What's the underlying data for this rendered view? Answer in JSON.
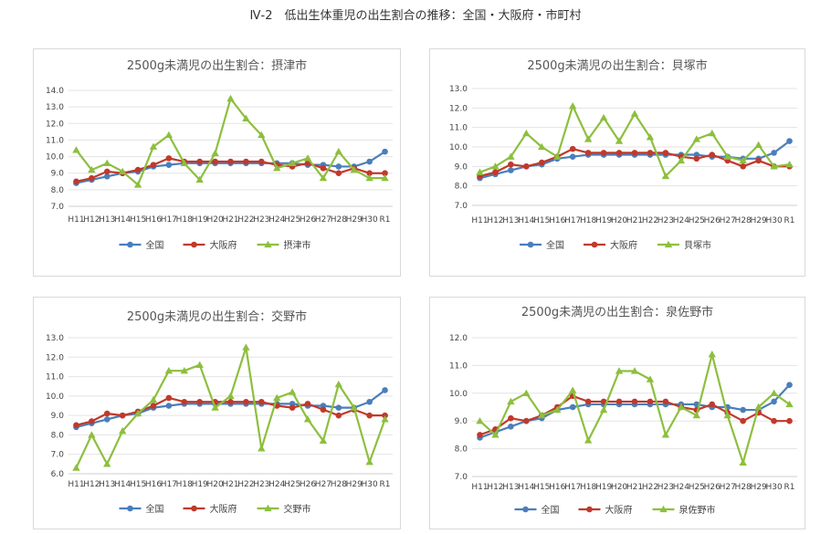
{
  "page_title": "Ⅳ-2　低出生体重児の出生割合の推移：全国・大阪府・市町村",
  "colors": {
    "national": "#4a7ebb",
    "osaka": "#c0392b",
    "city": "#8dbf3e"
  },
  "chart_data": [
    {
      "type": "line",
      "title": "2500g未満児の出生割合：摂津市",
      "categories": [
        "H11",
        "H12",
        "H13",
        "H14",
        "H15",
        "H16",
        "H17",
        "H18",
        "H19",
        "H20",
        "H21",
        "H22",
        "H23",
        "H24",
        "H25",
        "H26",
        "H27",
        "H28",
        "H29",
        "H30",
        "R1"
      ],
      "yticks": [
        "7.0",
        "8.0",
        "9.0",
        "10.0",
        "11.0",
        "12.0",
        "13.0",
        "14.0"
      ],
      "ylim": [
        7,
        14
      ],
      "series": [
        {
          "name": "全国",
          "values": [
            8.4,
            8.6,
            8.8,
            9.0,
            9.1,
            9.4,
            9.5,
            9.6,
            9.6,
            9.6,
            9.6,
            9.6,
            9.6,
            9.6,
            9.6,
            9.5,
            9.5,
            9.4,
            9.4,
            9.7,
            10.3
          ]
        },
        {
          "name": "大阪府",
          "values": [
            8.5,
            8.7,
            9.1,
            9.0,
            9.2,
            9.5,
            9.9,
            9.7,
            9.7,
            9.7,
            9.7,
            9.7,
            9.7,
            9.5,
            9.4,
            9.6,
            9.3,
            9.0,
            9.3,
            9.0,
            9.0
          ]
        },
        {
          "name": "摂津市",
          "values": [
            10.4,
            9.2,
            9.6,
            9.1,
            8.3,
            10.6,
            11.3,
            9.6,
            8.6,
            10.2,
            13.5,
            12.3,
            11.3,
            9.3,
            9.6,
            9.9,
            8.7,
            10.3,
            9.2,
            8.7,
            8.7
          ]
        }
      ]
    },
    {
      "type": "line",
      "title": "2500g未満児の出生割合：貝塚市",
      "categories": [
        "H11",
        "H12",
        "H13",
        "H14",
        "H15",
        "H16",
        "H17",
        "H18",
        "H19",
        "H20",
        "H21",
        "H22",
        "H23",
        "H24",
        "H25",
        "H26",
        "H27",
        "H28",
        "H29",
        "H30",
        "R1"
      ],
      "yticks": [
        "7.0",
        "8.0",
        "9.0",
        "10.0",
        "11.0",
        "12.0",
        "13.0"
      ],
      "ylim": [
        7,
        13
      ],
      "series": [
        {
          "name": "全国",
          "values": [
            8.4,
            8.6,
            8.8,
            9.0,
            9.1,
            9.4,
            9.5,
            9.6,
            9.6,
            9.6,
            9.6,
            9.6,
            9.6,
            9.6,
            9.6,
            9.5,
            9.5,
            9.4,
            9.4,
            9.7,
            10.3
          ]
        },
        {
          "name": "大阪府",
          "values": [
            8.5,
            8.7,
            9.1,
            9.0,
            9.2,
            9.5,
            9.9,
            9.7,
            9.7,
            9.7,
            9.7,
            9.7,
            9.7,
            9.5,
            9.4,
            9.6,
            9.3,
            9.0,
            9.3,
            9.0,
            9.0
          ]
        },
        {
          "name": "貝塚市",
          "values": [
            8.7,
            9.0,
            9.5,
            10.7,
            10.0,
            9.5,
            12.1,
            10.4,
            11.5,
            10.3,
            11.7,
            10.5,
            8.5,
            9.3,
            10.4,
            10.7,
            9.5,
            9.3,
            10.1,
            9.0,
            9.1
          ]
        }
      ]
    },
    {
      "type": "line",
      "title": "2500g未満児の出生割合：交野市",
      "categories": [
        "H11",
        "H12",
        "H13",
        "H14",
        "H15",
        "H16",
        "H17",
        "H18",
        "H19",
        "H20",
        "H21",
        "H22",
        "H23",
        "H24",
        "H25",
        "H26",
        "H27",
        "H28",
        "H29",
        "H30",
        "R1"
      ],
      "yticks": [
        "6.0",
        "7.0",
        "8.0",
        "9.0",
        "10.0",
        "11.0",
        "12.0",
        "13.0"
      ],
      "ylim": [
        6,
        13
      ],
      "series": [
        {
          "name": "全国",
          "values": [
            8.4,
            8.6,
            8.8,
            9.0,
            9.1,
            9.4,
            9.5,
            9.6,
            9.6,
            9.6,
            9.6,
            9.6,
            9.6,
            9.6,
            9.6,
            9.5,
            9.5,
            9.4,
            9.4,
            9.7,
            10.3
          ]
        },
        {
          "name": "大阪府",
          "values": [
            8.5,
            8.7,
            9.1,
            9.0,
            9.2,
            9.5,
            9.9,
            9.7,
            9.7,
            9.7,
            9.7,
            9.7,
            9.7,
            9.5,
            9.4,
            9.6,
            9.3,
            9.0,
            9.3,
            9.0,
            9.0
          ]
        },
        {
          "name": "交野市",
          "values": [
            6.3,
            8.0,
            6.5,
            8.2,
            9.1,
            9.8,
            11.3,
            11.3,
            11.6,
            9.4,
            10.0,
            12.5,
            7.3,
            9.9,
            10.2,
            8.8,
            7.7,
            10.6,
            9.4,
            6.6,
            8.8
          ]
        }
      ]
    },
    {
      "type": "line",
      "title": "2500g未満児の出生割合：泉佐野市",
      "categories": [
        "H11",
        "H12",
        "H13",
        "H14",
        "H15",
        "H16",
        "H17",
        "H18",
        "H19",
        "H20",
        "H21",
        "H22",
        "H23",
        "H24",
        "H25",
        "H26",
        "H27",
        "H28",
        "H29",
        "H30",
        "R1"
      ],
      "yticks": [
        "7.0",
        "8.0",
        "9.0",
        "10.0",
        "11.0",
        "12.0"
      ],
      "ylim": [
        7,
        12
      ],
      "series": [
        {
          "name": "全国",
          "values": [
            8.4,
            8.6,
            8.8,
            9.0,
            9.1,
            9.4,
            9.5,
            9.6,
            9.6,
            9.6,
            9.6,
            9.6,
            9.6,
            9.6,
            9.6,
            9.5,
            9.5,
            9.4,
            9.4,
            9.7,
            10.3
          ]
        },
        {
          "name": "大阪府",
          "values": [
            8.5,
            8.7,
            9.1,
            9.0,
            9.2,
            9.5,
            9.9,
            9.7,
            9.7,
            9.7,
            9.7,
            9.7,
            9.7,
            9.5,
            9.4,
            9.6,
            9.3,
            9.0,
            9.3,
            9.0,
            9.0
          ]
        },
        {
          "name": "泉佐野市",
          "values": [
            9.0,
            8.5,
            9.7,
            10.0,
            9.2,
            9.4,
            10.1,
            8.3,
            9.4,
            10.8,
            10.8,
            10.5,
            8.5,
            9.5,
            9.2,
            11.4,
            9.2,
            7.5,
            9.5,
            10.0,
            9.6
          ]
        }
      ]
    }
  ]
}
